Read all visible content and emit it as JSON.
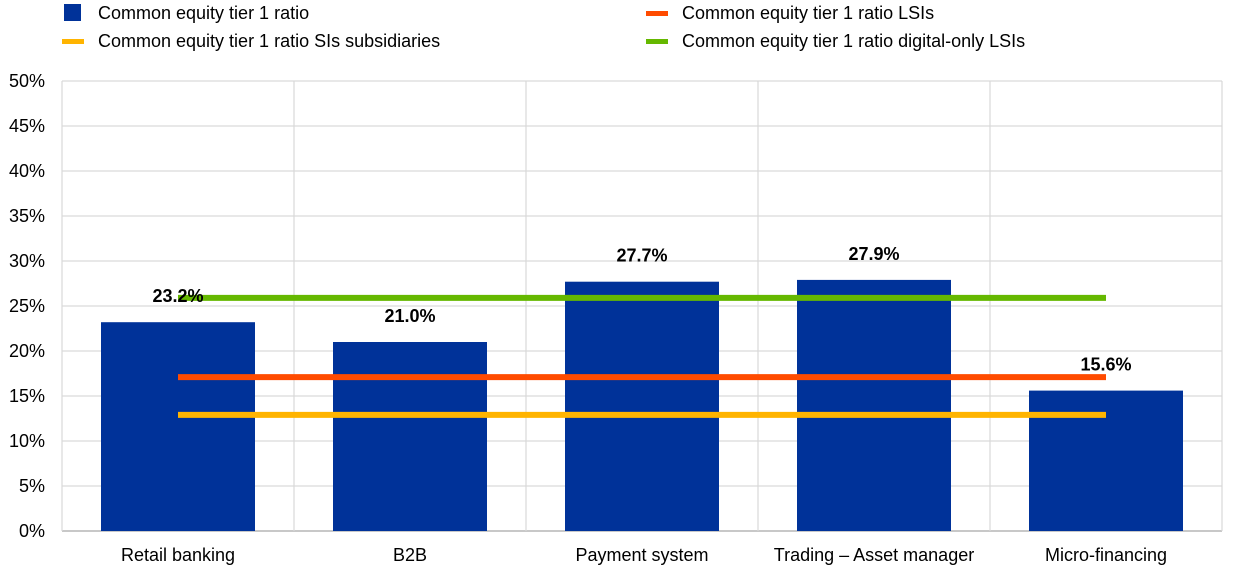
{
  "chart_data": {
    "type": "bar",
    "categories": [
      "Retail banking",
      "B2B",
      "Payment system",
      "Trading – Asset manager",
      "Micro-financing"
    ],
    "series": [
      {
        "name": "Common equity tier 1 ratio",
        "kind": "bar",
        "color": "#003299",
        "values": [
          23.2,
          21.0,
          27.7,
          27.9,
          15.6
        ],
        "data_labels": [
          "23.2%",
          "21.0%",
          "27.7%",
          "27.9%",
          "15.6%"
        ]
      },
      {
        "name": "Common equity tier 1 ratio LSIs",
        "kind": "line",
        "color": "#FF4B00",
        "values": [
          17.1,
          17.1,
          17.1,
          17.1,
          17.1
        ]
      },
      {
        "name": "Common equity tier 1 ratio SIs subsidiaries",
        "kind": "line",
        "color": "#FFB400",
        "values": [
          12.9,
          12.9,
          12.9,
          12.9,
          12.9
        ]
      },
      {
        "name": "Common equity tier 1 ratio digital-only LSIs",
        "kind": "line",
        "color": "#65B800",
        "values": [
          25.9,
          25.9,
          25.9,
          25.9,
          25.9
        ]
      }
    ],
    "y_ticks": [
      "0%",
      "5%",
      "10%",
      "15%",
      "20%",
      "25%",
      "30%",
      "35%",
      "40%",
      "45%",
      "50%"
    ],
    "ylim": [
      0,
      50
    ],
    "grid": true,
    "legend_placement": "top"
  }
}
